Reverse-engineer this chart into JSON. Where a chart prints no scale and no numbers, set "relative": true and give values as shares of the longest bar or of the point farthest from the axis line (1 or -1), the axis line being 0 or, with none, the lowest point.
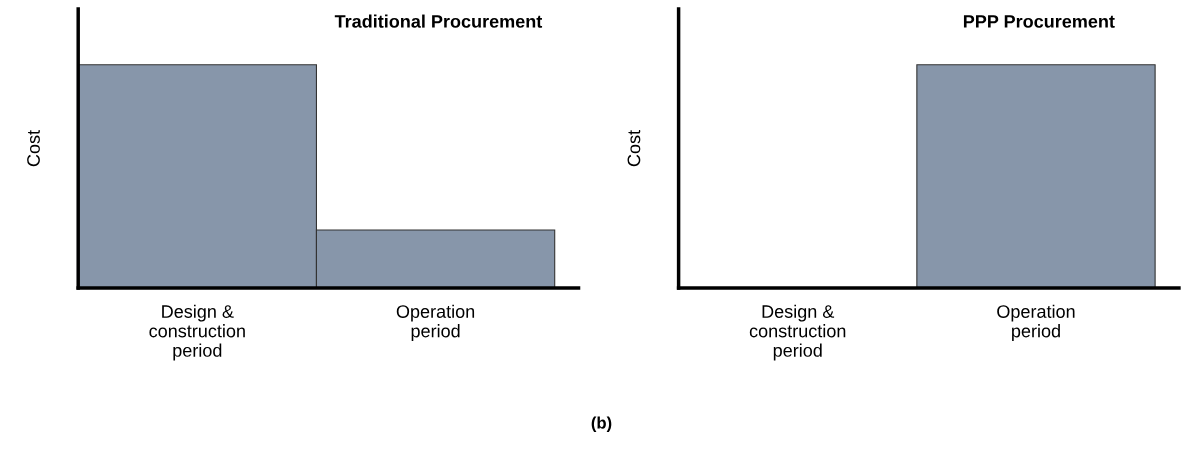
{
  "chart_data": [
    {
      "type": "bar",
      "title": "Traditional Procurement",
      "ylabel": "Cost",
      "relative": true,
      "categories": [
        "Design &\nconstruction\nperiod",
        "Operation\nperiod"
      ],
      "series": [
        {
          "color": "#8796aa",
          "values": [
            1,
            0.26
          ]
        }
      ],
      "annotations": [
        "(b)"
      ]
    },
    {
      "type": "bar",
      "title": "PPP Procurement",
      "ylabel": "Cost",
      "relative": true,
      "categories": [
        "Design &\nconstruction\nperiod",
        "Operation\nperiod"
      ],
      "series": [
        {
          "color": "#8796aa",
          "values": [
            null,
            1
          ]
        }
      ]
    }
  ]
}
